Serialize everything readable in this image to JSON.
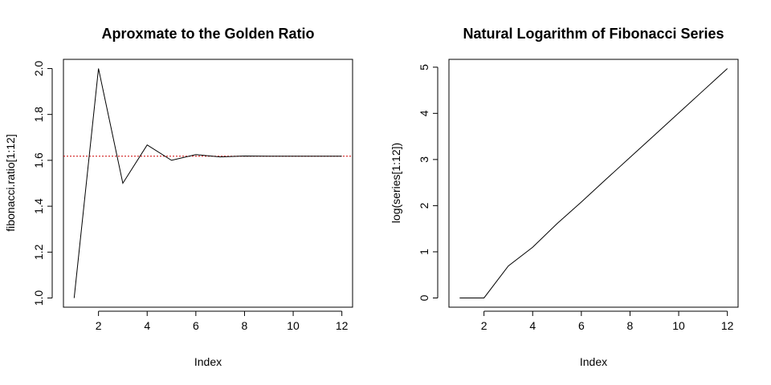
{
  "chart_data": [
    {
      "type": "line",
      "title": "Aproxmate to the Golden Ratio",
      "xlabel": "Index",
      "ylabel": "fibonacci.ratio[1:12]",
      "x": [
        1,
        2,
        3,
        4,
        5,
        6,
        7,
        8,
        9,
        10,
        11,
        12
      ],
      "series": [
        {
          "values": [
            1.0,
            2.0,
            1.5,
            1.667,
            1.6,
            1.625,
            1.615,
            1.619,
            1.618,
            1.618,
            1.618,
            1.618
          ]
        }
      ],
      "reference_line": {
        "y": 1.618,
        "color": "#cc0000",
        "style": "dotted"
      },
      "xlim": [
        0.56,
        12.44
      ],
      "ylim": [
        0.96,
        2.04
      ],
      "xticks": [
        2,
        4,
        6,
        8,
        10,
        12
      ],
      "xtick_labels": [
        "2",
        "4",
        "6",
        "8",
        "10",
        "12"
      ],
      "yticks": [
        1.0,
        1.2,
        1.4,
        1.6,
        1.8,
        2.0
      ],
      "ytick_labels": [
        "1.0",
        "1.2",
        "1.4",
        "1.6",
        "1.8",
        "2.0"
      ],
      "grid": false
    },
    {
      "type": "line",
      "title": "Natural Logarithm of Fibonacci Series",
      "xlabel": "Index",
      "ylabel": "log(series[1:12])",
      "x": [
        1,
        2,
        3,
        4,
        5,
        6,
        7,
        8,
        9,
        10,
        11,
        12
      ],
      "series": [
        {
          "values": [
            0,
            0,
            0.693,
            1.099,
            1.609,
            2.079,
            2.565,
            3.045,
            3.526,
            4.007,
            4.489,
            4.97
          ]
        }
      ],
      "xlim": [
        0.56,
        12.44
      ],
      "ylim": [
        -0.2,
        5.17
      ],
      "xticks": [
        2,
        4,
        6,
        8,
        10,
        12
      ],
      "xtick_labels": [
        "2",
        "4",
        "6",
        "8",
        "10",
        "12"
      ],
      "yticks": [
        0,
        1,
        2,
        3,
        4,
        5
      ],
      "ytick_labels": [
        "0",
        "1",
        "2",
        "3",
        "4",
        "5"
      ],
      "grid": false
    }
  ]
}
